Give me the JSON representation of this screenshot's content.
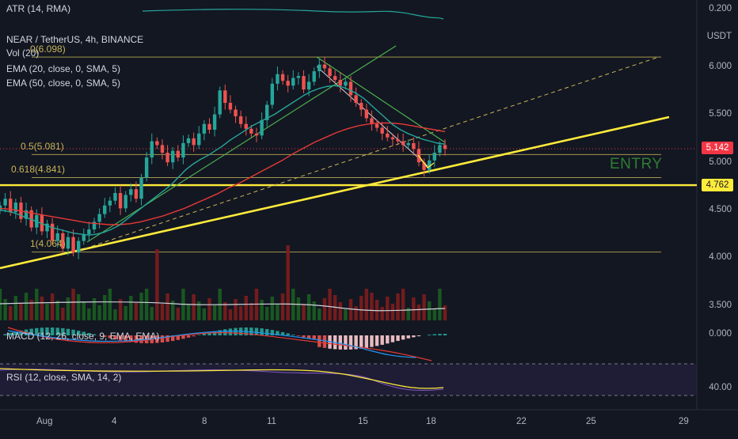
{
  "chart_data": {
    "type": "candlestick",
    "symbol_line": "NEAR / TetherUS, 4h, BINANCE",
    "indicators": {
      "atr": "ATR (14, RMA)",
      "vol": "Vol (20)",
      "ema20": "EMA (20, close, 0, SMA, 5)",
      "ema50": "EMA (50, close, 0, SMA, 5)",
      "macd": "MACD (12, 26, close, 9, EMA, EMA)",
      "rsi": "RSI (12, close, SMA, 14, 2)"
    },
    "price_axis": {
      "unit": "USDT",
      "ticks": [
        "6.000",
        "5.500",
        "5.000",
        "4.500",
        "4.000",
        "3.500"
      ],
      "atr_tick": "0.200",
      "macd_tick": "0.000",
      "rsi_tick": "40.00",
      "ylim": [
        3.4,
        6.3
      ]
    },
    "x_axis": {
      "ticks": [
        "Aug",
        "4",
        "8",
        "11",
        "15",
        "18",
        "22",
        "25",
        "29"
      ],
      "tick_days": [
        1,
        4,
        8,
        11,
        15,
        18,
        22,
        25,
        29
      ]
    },
    "fibonacci": [
      {
        "label": "0(6.098)",
        "value": 6.098
      },
      {
        "label": "0.5(5.081)",
        "value": 5.081
      },
      {
        "label": "0.618(4.841)",
        "value": 4.841
      },
      {
        "label": "1(4.064)",
        "value": 4.064
      }
    ],
    "current_price": "5.142",
    "entry_level": "4.762",
    "entry_text": "ENTRY",
    "close_series": [
      4.55,
      4.62,
      4.48,
      4.58,
      4.41,
      4.5,
      4.32,
      4.45,
      4.28,
      4.36,
      4.18,
      4.26,
      4.1,
      4.22,
      4.06,
      4.18,
      4.25,
      4.3,
      4.38,
      4.46,
      4.55,
      4.6,
      4.68,
      4.52,
      4.66,
      4.72,
      4.62,
      4.84,
      5.05,
      5.22,
      5.18,
      5.1,
      5.0,
      5.12,
      5.05,
      5.2,
      5.25,
      5.18,
      5.3,
      5.4,
      5.34,
      5.5,
      5.75,
      5.62,
      5.55,
      5.48,
      5.4,
      5.35,
      5.3,
      5.28,
      5.44,
      5.6,
      5.82,
      5.92,
      5.85,
      5.8,
      5.88,
      5.9,
      5.76,
      5.84,
      5.95,
      6.02,
      5.98,
      5.9,
      5.86,
      5.8,
      5.84,
      5.7,
      5.62,
      5.55,
      5.46,
      5.4,
      5.36,
      5.3,
      5.26,
      5.24,
      5.22,
      5.18,
      5.2,
      5.14,
      5.0,
      4.92,
      5.02,
      5.1,
      5.18,
      5.14
    ],
    "ema20": [
      4.5,
      4.49,
      4.47,
      4.44,
      4.41,
      4.38,
      4.35,
      4.32,
      4.3,
      4.28,
      4.26,
      4.25,
      4.24,
      4.25,
      4.27,
      4.3,
      4.34,
      4.4,
      4.46,
      4.52,
      4.58,
      4.64,
      4.7,
      4.76,
      4.84,
      4.92,
      4.98,
      5.03,
      5.07,
      5.12,
      5.17,
      5.23,
      5.28,
      5.33,
      5.38,
      5.42,
      5.46,
      5.5,
      5.55,
      5.6,
      5.65,
      5.7,
      5.74,
      5.77,
      5.79,
      5.8,
      5.79,
      5.76,
      5.72,
      5.67,
      5.6,
      5.53,
      5.46,
      5.39,
      5.34,
      5.3,
      5.27,
      5.24,
      5.22,
      5.2,
      5.19
    ],
    "ema50": [
      4.52,
      4.51,
      4.49,
      4.47,
      4.45,
      4.43,
      4.41,
      4.39,
      4.37,
      4.36,
      4.35,
      4.35,
      4.36,
      4.38,
      4.41,
      4.44,
      4.48,
      4.52,
      4.57,
      4.62,
      4.67,
      4.73,
      4.78,
      4.84,
      4.9,
      4.96,
      5.02,
      5.09,
      5.15,
      5.21,
      5.26,
      5.31,
      5.35,
      5.38,
      5.4,
      5.41,
      5.41,
      5.4,
      5.38,
      5.36,
      5.34,
      5.32
    ]
  }
}
